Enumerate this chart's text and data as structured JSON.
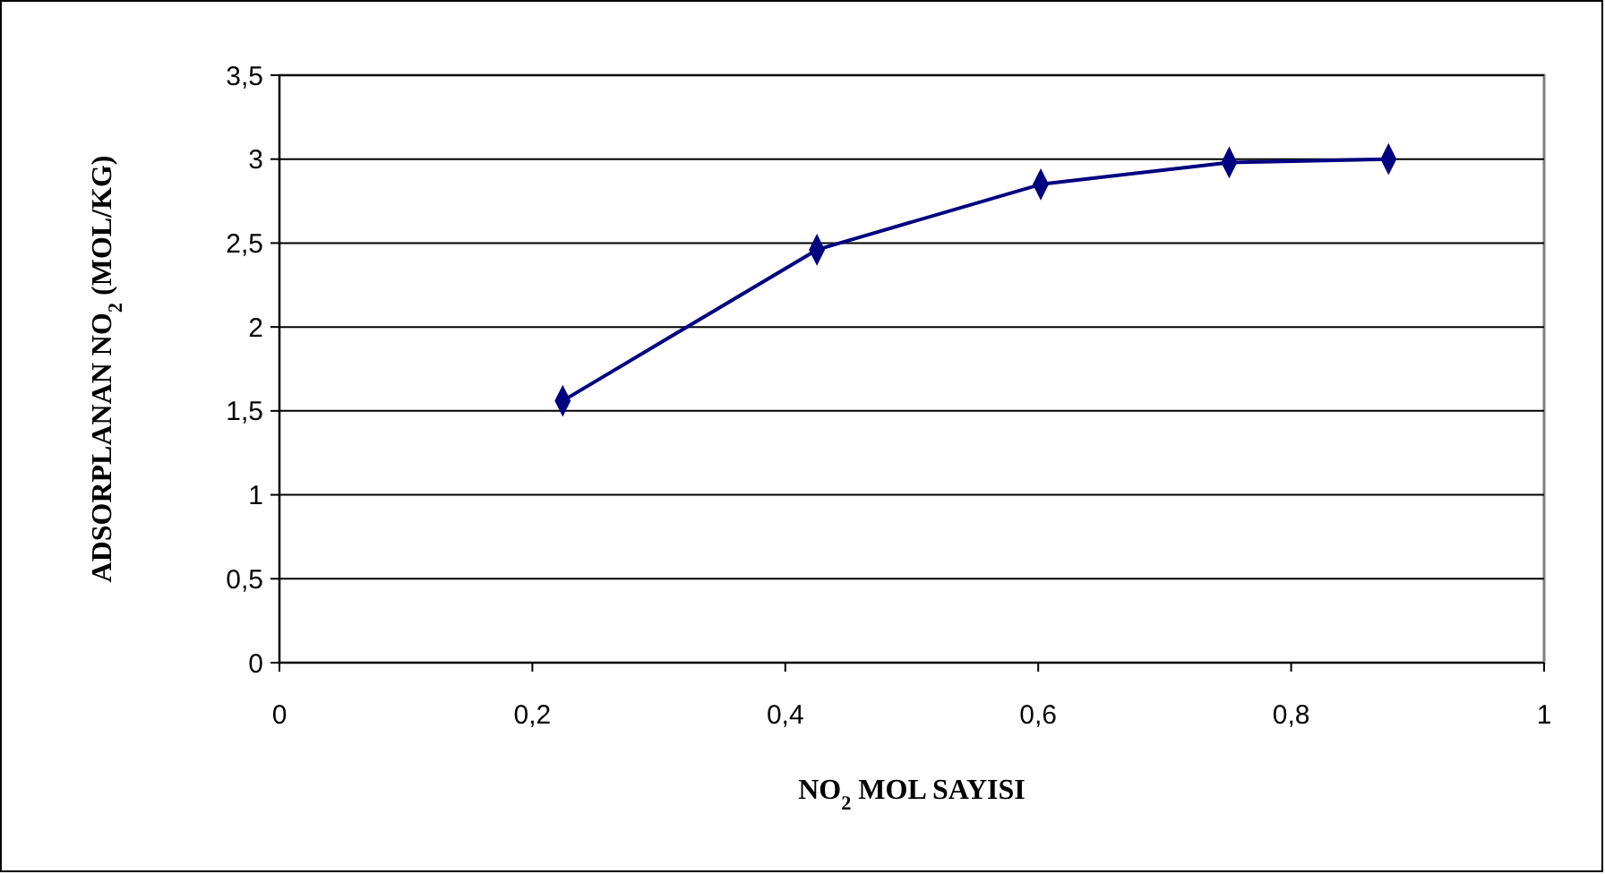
{
  "chart_data": {
    "type": "line",
    "xlabel": "NO$_{2}$ MOL SAYISI",
    "ylabel": "ADSORPLANAN NO$_{2}$ (MOL/KG)",
    "x": [
      0.224,
      0.425,
      0.602,
      0.751,
      0.877
    ],
    "series": [
      {
        "color": "#000080",
        "values": [
          1.56,
          2.46,
          2.85,
          2.98,
          3.0
        ]
      }
    ],
    "xlim": [
      0,
      1
    ],
    "xticks": [
      0,
      {
        "value": 0.2,
        "label": "0,2"
      },
      {
        "value": 0.4,
        "label": "0,4"
      },
      {
        "value": 0.6,
        "label": "0,6"
      },
      {
        "value": 0.8,
        "label": "0,8"
      },
      1
    ],
    "ylim": [
      0,
      3.5
    ],
    "yticks": [
      0,
      {
        "value": 0.5,
        "label": "0,5"
      },
      1,
      {
        "value": 1.5,
        "label": "1,5"
      },
      2,
      {
        "value": 2.5,
        "label": "2,5"
      },
      3,
      {
        "value": 3.5,
        "label": "3,5"
      }
    ],
    "grid": "y",
    "marker": "diamond",
    "line_style": "solid"
  }
}
